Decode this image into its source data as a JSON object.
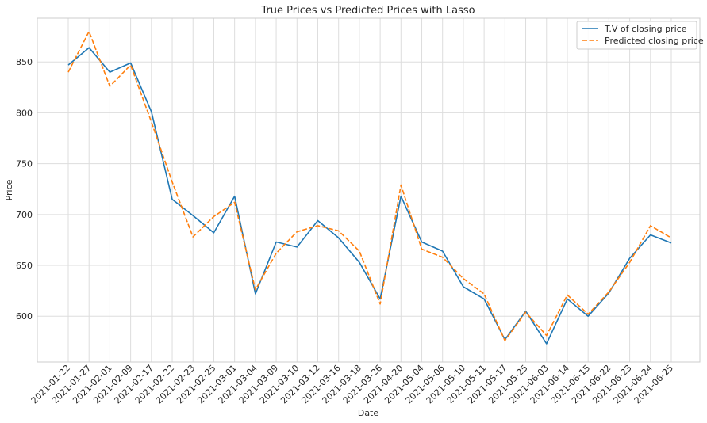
{
  "chart_data": {
    "type": "line",
    "title": "True Prices vs Predicted Prices with Lasso",
    "xlabel": "Date",
    "ylabel": "Price",
    "x": [
      "2021-01-22",
      "2021-01-27",
      "2021-02-01",
      "2021-02-09",
      "2021-02-17",
      "2021-02-22",
      "2021-02-23",
      "2021-02-25",
      "2021-03-01",
      "2021-03-04",
      "2021-03-09",
      "2021-03-10",
      "2021-03-12",
      "2021-03-16",
      "2021-03-18",
      "2021-03-26",
      "2021-04-20",
      "2021-05-04",
      "2021-05-06",
      "2021-05-10",
      "2021-05-11",
      "2021-05-17",
      "2021-05-25",
      "2021-06-03",
      "2021-06-14",
      "2021-06-15",
      "2021-06-22",
      "2021-06-23",
      "2021-06-24",
      "2021-06-25"
    ],
    "ylim": [
      555,
      893
    ],
    "yticks": [
      600,
      650,
      700,
      750,
      800,
      850
    ],
    "grid": true,
    "legend_position": "top-right",
    "series": [
      {
        "name": "T.V of closing price",
        "color": "#1f77b4",
        "style": "solid",
        "values": [
          847,
          864,
          840,
          849,
          801,
          715,
          699,
          682,
          718,
          622,
          673,
          668,
          694,
          677,
          653,
          617,
          718,
          673,
          664,
          629,
          617,
          577,
          605,
          573,
          617,
          600,
          623,
          657,
          680,
          672
        ]
      },
      {
        "name": "Predicted closing price",
        "color": "#ff7f0e",
        "style": "dashed",
        "values": [
          840,
          880,
          826,
          847,
          791,
          732,
          678,
          698,
          712,
          626,
          662,
          683,
          689,
          684,
          664,
          612,
          729,
          666,
          658,
          637,
          622,
          576,
          604,
          581,
          621,
          602,
          624,
          653,
          689,
          677
        ]
      }
    ]
  }
}
